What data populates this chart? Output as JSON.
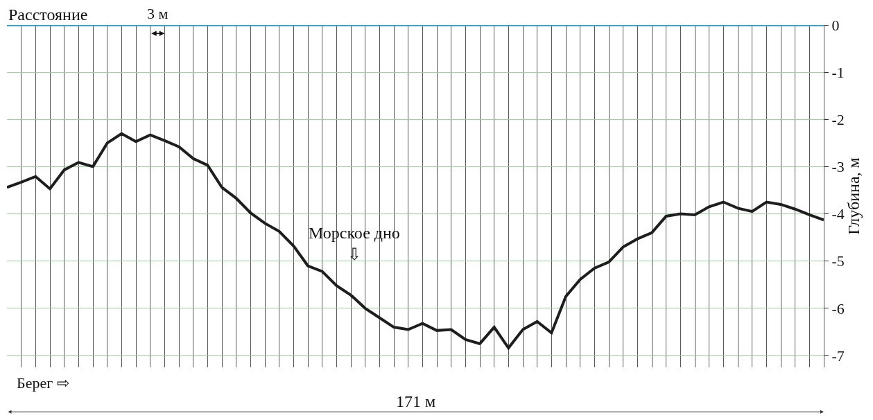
{
  "chart_data": {
    "type": "line",
    "xlabel": "Расстояние",
    "ylabel": "Глубина, м",
    "categories": [
      null,
      null,
      null,
      null,
      null,
      null,
      null,
      null,
      null,
      null,
      null,
      null,
      null,
      null,
      null,
      null,
      null,
      null,
      null,
      null,
      null,
      null,
      null,
      null,
      null,
      null,
      null,
      null,
      null,
      null,
      null,
      null,
      null,
      null,
      null,
      null,
      null,
      null,
      null,
      null,
      null,
      null,
      null,
      null,
      null,
      null,
      null,
      null,
      null,
      null,
      null,
      null,
      null,
      null,
      null,
      null,
      null,
      null
    ],
    "series": [
      {
        "color": "#1e1e1e",
        "values": [
          -3.44,
          -3.33,
          -3.21,
          -3.47,
          -3.07,
          -2.91,
          -3.0,
          -2.5,
          -2.3,
          -2.47,
          -2.33,
          -2.45,
          -2.58,
          -2.83,
          -2.97,
          -3.44,
          -3.67,
          -3.98,
          -4.2,
          -4.37,
          -4.68,
          -5.1,
          -5.22,
          -5.52,
          -5.72,
          -6.0,
          -6.2,
          -6.4,
          -6.45,
          -6.32,
          -6.47,
          -6.45,
          -6.66,
          -6.75,
          -6.4,
          -6.84,
          -6.45,
          -6.28,
          -6.52,
          -5.75,
          -5.39,
          -5.15,
          -5.02,
          -4.7,
          -4.53,
          -4.4,
          -4.05,
          -4.0,
          -4.02,
          -3.85,
          -3.75,
          -3.88,
          -3.95,
          -3.75,
          -3.8,
          -3.9,
          -4.02,
          -4.13
        ]
      }
    ],
    "ylim": [
      -7.25,
      0
    ],
    "yticks": [
      0,
      -1,
      -2,
      -3,
      -4,
      -5,
      -6,
      -7
    ],
    "tick_labels": "y",
    "grid": true,
    "marker": "none",
    "line_style": "solid",
    "ref_lines": [
      {
        "axis": "y",
        "value": 0,
        "color": "#3aa6c6"
      }
    ],
    "annotations": [
      "3 м",
      "Морское дно\n⇩",
      "Берег ⇨",
      "171 м"
    ]
  }
}
